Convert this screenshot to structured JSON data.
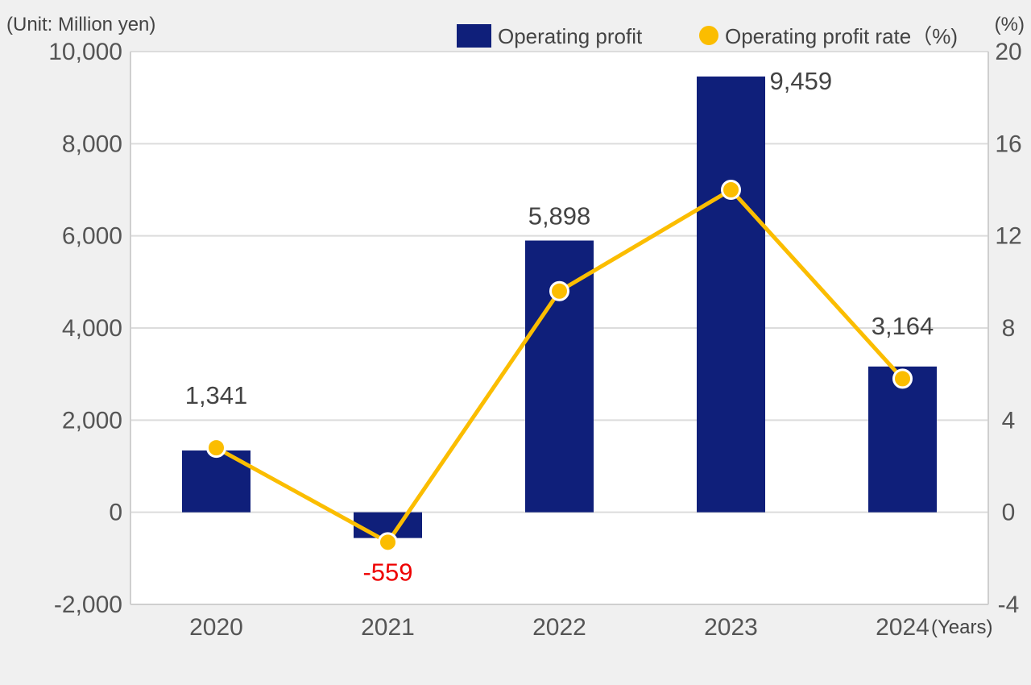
{
  "chart_data": {
    "type": "bar",
    "title": "",
    "unit_left": "(Unit: Million yen)",
    "unit_right": "(%)",
    "x_unit": "(Years)",
    "categories": [
      "2020",
      "2021",
      "2022",
      "2023",
      "2024"
    ],
    "series": [
      {
        "name": "Operating profit",
        "type": "bar",
        "axis": "left",
        "values": [
          1341,
          -559,
          5898,
          9459,
          3164
        ],
        "labels": [
          "1,341",
          "-559",
          "5,898",
          "9,459",
          "3,164"
        ],
        "color": "#0f1f7a"
      },
      {
        "name": "Operating profit rate（%)",
        "type": "line",
        "axis": "right",
        "values": [
          2.8,
          -1.3,
          9.6,
          14.0,
          5.8
        ],
        "color": "#fbbd00"
      }
    ],
    "y_left": {
      "ylim": [
        -2000,
        10000
      ],
      "ticks": [
        -2000,
        0,
        2000,
        4000,
        6000,
        8000,
        10000
      ],
      "tick_labels": [
        "-2,000",
        "0",
        "2,000",
        "4,000",
        "6,000",
        "8,000",
        "10,000"
      ]
    },
    "y_right": {
      "ylim": [
        -4,
        20
      ],
      "ticks": [
        -4,
        0,
        4,
        8,
        12,
        16,
        20
      ],
      "tick_labels": [
        "-4",
        "0",
        "4",
        "8",
        "12",
        "16",
        "20"
      ]
    },
    "negative_label_color": "#ee0000",
    "grid": true,
    "legend_position": "top-right"
  }
}
